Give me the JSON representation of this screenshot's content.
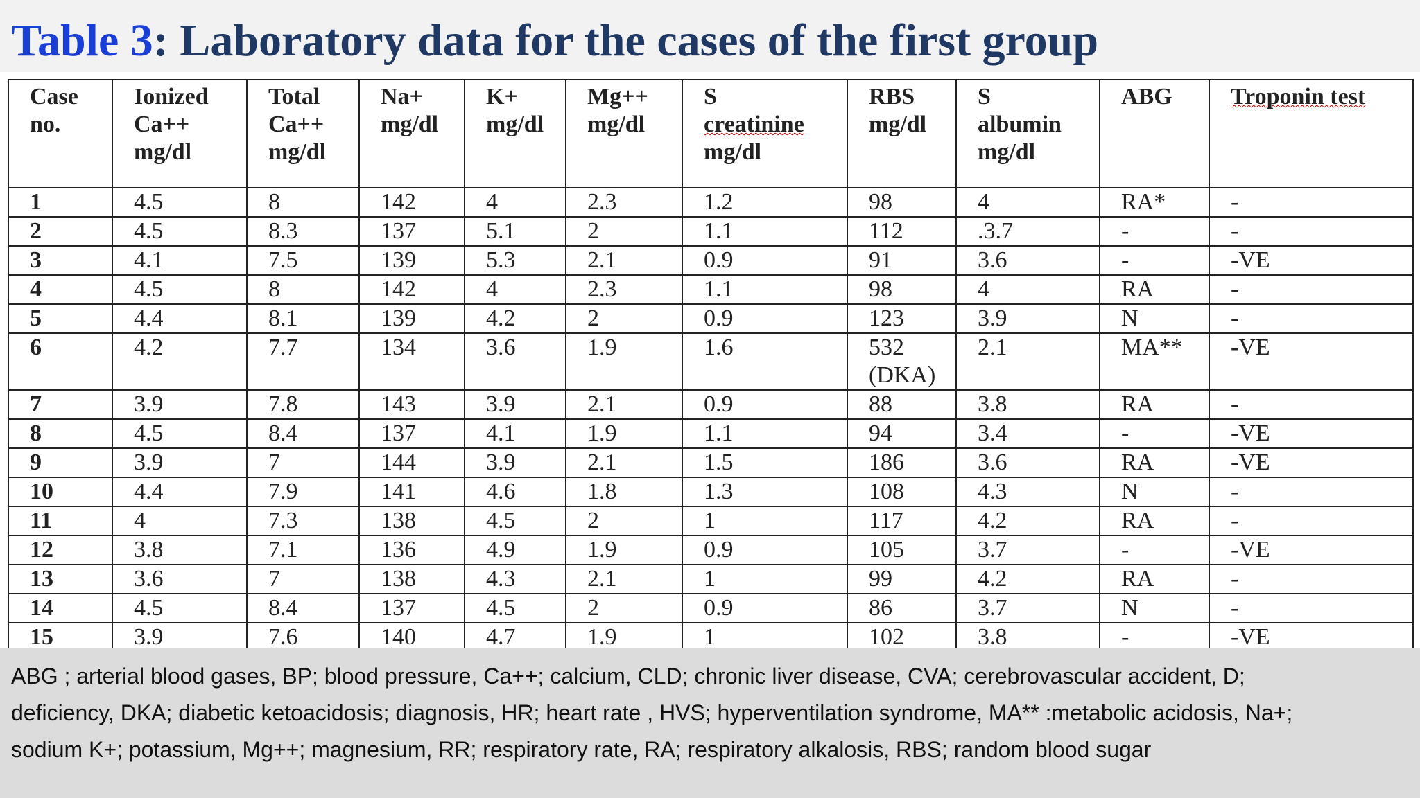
{
  "title": {
    "number": "Table 3",
    "rest": ": Laboratory data for the cases of the first group"
  },
  "table": {
    "headers": [
      [
        "Case",
        "no."
      ],
      [
        "Ionized",
        "Ca++",
        "mg/dl"
      ],
      [
        "Total",
        "Ca++",
        "mg/dl"
      ],
      [
        "Na+",
        "mg/dl"
      ],
      [
        "K+",
        "mg/dl"
      ],
      [
        "Mg++",
        "mg/dl"
      ],
      [
        "S",
        "creatinine",
        "mg/dl"
      ],
      [
        "RBS",
        "mg/dl"
      ],
      [
        "S",
        "albumin",
        "mg/dl"
      ],
      [
        "ABG"
      ],
      [
        "Troponin test"
      ]
    ],
    "rows": [
      [
        "1",
        "4.5",
        "8",
        "142",
        "4",
        "2.3",
        "1.2",
        "98",
        "4",
        "RA*",
        "-"
      ],
      [
        "2",
        "4.5",
        "8.3",
        "137",
        "5.1",
        "2",
        "1.1",
        "112",
        ".3.7",
        "-",
        "-"
      ],
      [
        "3",
        "4.1",
        "7.5",
        "139",
        "5.3",
        "2.1",
        "0.9",
        "91",
        "3.6",
        "-",
        "-VE"
      ],
      [
        "4",
        "4.5",
        "8",
        "142",
        "4",
        "2.3",
        "1.1",
        "98",
        "4",
        "RA",
        "-"
      ],
      [
        "5",
        "4.4",
        "8.1",
        "139",
        "4.2",
        "2",
        "0.9",
        "123",
        "3.9",
        "N",
        "-"
      ],
      [
        "6",
        "4.2",
        "7.7",
        "134",
        "3.6",
        "1.9",
        "1.6",
        "532 (DKA)",
        "2.1",
        "MA**",
        "-VE"
      ],
      [
        "7",
        "3.9",
        "7.8",
        "143",
        "3.9",
        "2.1",
        "0.9",
        "88",
        "3.8",
        "RA",
        "-"
      ],
      [
        "8",
        "4.5",
        "8.4",
        "137",
        "4.1",
        "1.9",
        "1.1",
        "94",
        "3.4",
        "-",
        "-VE"
      ],
      [
        "9",
        "3.9",
        "7",
        "144",
        "3.9",
        "2.1",
        "1.5",
        "186",
        "3.6",
        "RA",
        "-VE"
      ],
      [
        "10",
        "4.4",
        "7.9",
        "141",
        "4.6",
        "1.8",
        "1.3",
        "108",
        "4.3",
        "N",
        "-"
      ],
      [
        "11",
        "4",
        "7.3",
        "138",
        "4.5",
        "2",
        "1",
        "117",
        "4.2",
        "RA",
        "-"
      ],
      [
        "12",
        "3.8",
        "7.1",
        "136",
        "4.9",
        "1.9",
        "0.9",
        "105",
        "3.7",
        "-",
        "-VE"
      ],
      [
        "13",
        "3.6",
        "7",
        "138",
        "4.3",
        "2.1",
        "1",
        "99",
        "4.2",
        "RA",
        "-"
      ],
      [
        "14",
        "4.5",
        "8.4",
        "137",
        "4.5",
        "2",
        "0.9",
        "86",
        "3.7",
        "N",
        "-"
      ],
      [
        "15",
        "3.9",
        "7.6",
        "140",
        "4.7",
        "1.9",
        "1",
        "102",
        "3.8",
        "-",
        "-VE"
      ]
    ]
  },
  "footer": {
    "lines": [
      "ABG ; arterial blood gases, BP; blood pressure, Ca++; calcium, CLD; chronic liver disease, CVA; cerebrovascular accident, D;",
      "deficiency, DKA; diabetic ketoacidosis; diagnosis, HR; heart rate , HVS; hyperventilation syndrome, MA** :metabolic acidosis, Na+;",
      "sodium K+; potassium, Mg++; magnesium, RR; respiratory rate, RA; respiratory alkalosis,  RBS; random blood sugar"
    ]
  }
}
